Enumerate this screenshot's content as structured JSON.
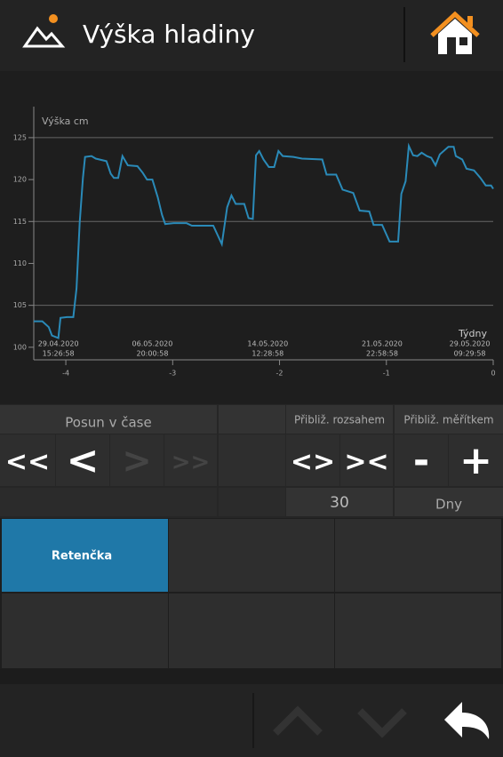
{
  "header": {
    "title": "Výška hladiny"
  },
  "chart": {
    "type": "line",
    "y_label": "Výška cm",
    "x_label": "Týdny",
    "color": "#2a8ab8",
    "x": [
      -4.3,
      -4.22,
      -4.16,
      -4.13,
      -4.07,
      -4.05,
      -3.99,
      -3.93,
      -3.9,
      -3.87,
      -3.84,
      -3.82,
      -3.76,
      -3.72,
      -3.62,
      -3.58,
      -3.55,
      -3.51,
      -3.47,
      -3.42,
      -3.33,
      -3.28,
      -3.24,
      -3.19,
      -3.14,
      -3.1,
      -3.07,
      -2.99,
      -2.87,
      -2.82,
      -2.62,
      -2.54,
      -2.49,
      -2.45,
      -2.41,
      -2.33,
      -2.29,
      -2.25,
      -2.22,
      -2.19,
      -2.15,
      -2.1,
      -2.05,
      -2.01,
      -1.97,
      -1.87,
      -1.79,
      -1.6,
      -1.56,
      -1.47,
      -1.41,
      -1.31,
      -1.25,
      -1.16,
      -1.12,
      -1.04,
      -0.97,
      -0.89,
      -0.86,
      -0.82,
      -0.79,
      -0.75,
      -0.71,
      -0.67,
      -0.62,
      -0.58,
      -0.54,
      -0.5,
      -0.42,
      -0.37,
      -0.35,
      -0.29,
      -0.25,
      -0.18,
      -0.12,
      -0.07,
      -0.02,
      0
    ],
    "values": [
      103.1,
      103.1,
      102.4,
      101.4,
      101.1,
      103.5,
      103.6,
      103.6,
      107,
      114.9,
      120.2,
      122.7,
      122.8,
      122.5,
      122.2,
      120.7,
      120.2,
      120.2,
      122.8,
      121.7,
      121.6,
      120.8,
      120,
      120,
      117.9,
      115.8,
      114.7,
      114.8,
      114.8,
      114.5,
      114.5,
      112.3,
      116.7,
      118.1,
      117.1,
      117.1,
      115.4,
      115.3,
      122.9,
      123.4,
      122.4,
      121.5,
      121.5,
      123.4,
      122.8,
      122.7,
      122.5,
      122.4,
      120.6,
      120.6,
      118.8,
      118.4,
      116.3,
      116.2,
      114.6,
      114.6,
      112.6,
      112.6,
      118.3,
      119.8,
      124,
      122.9,
      122.8,
      123.2,
      122.8,
      122.6,
      121.7,
      123,
      123.9,
      123.9,
      122.8,
      122.4,
      121.3,
      121.1,
      120.2,
      119.3,
      119.3,
      118.9
    ],
    "xlim": [
      -4.3,
      0
    ],
    "ylim": [
      98.5,
      128.7
    ],
    "xticks": [
      -4,
      -3,
      -2,
      -1,
      0
    ],
    "yticks": [
      100,
      105,
      110,
      115,
      120,
      125
    ],
    "gridlines": [
      105,
      115,
      125
    ],
    "date_labels": [
      {
        "x": -4.07,
        "date": "29.04.2020",
        "time": "15:26:58"
      },
      {
        "x": -3.19,
        "date": "06.05.2020",
        "time": "20:00:58"
      },
      {
        "x": -2.11,
        "date": "14.05.2020",
        "time": "12:28:58"
      },
      {
        "x": -1.04,
        "date": "21.05.2020",
        "time": "22:58:58"
      },
      {
        "x": -0.22,
        "date": "29.05.2020",
        "time": "09:29:58"
      }
    ]
  },
  "controls": {
    "pan_label": "Posun v čase",
    "range_zoom_label": "Přibliž. rozsahem",
    "scale_zoom_label": "Přibliž. měřítkem",
    "buttons": [
      "<<",
      "<",
      ">",
      ">>",
      "<>",
      "><",
      "-",
      "+"
    ],
    "range_value": 30,
    "unit": "Dny"
  },
  "tiles": [
    "Retenčka"
  ]
}
